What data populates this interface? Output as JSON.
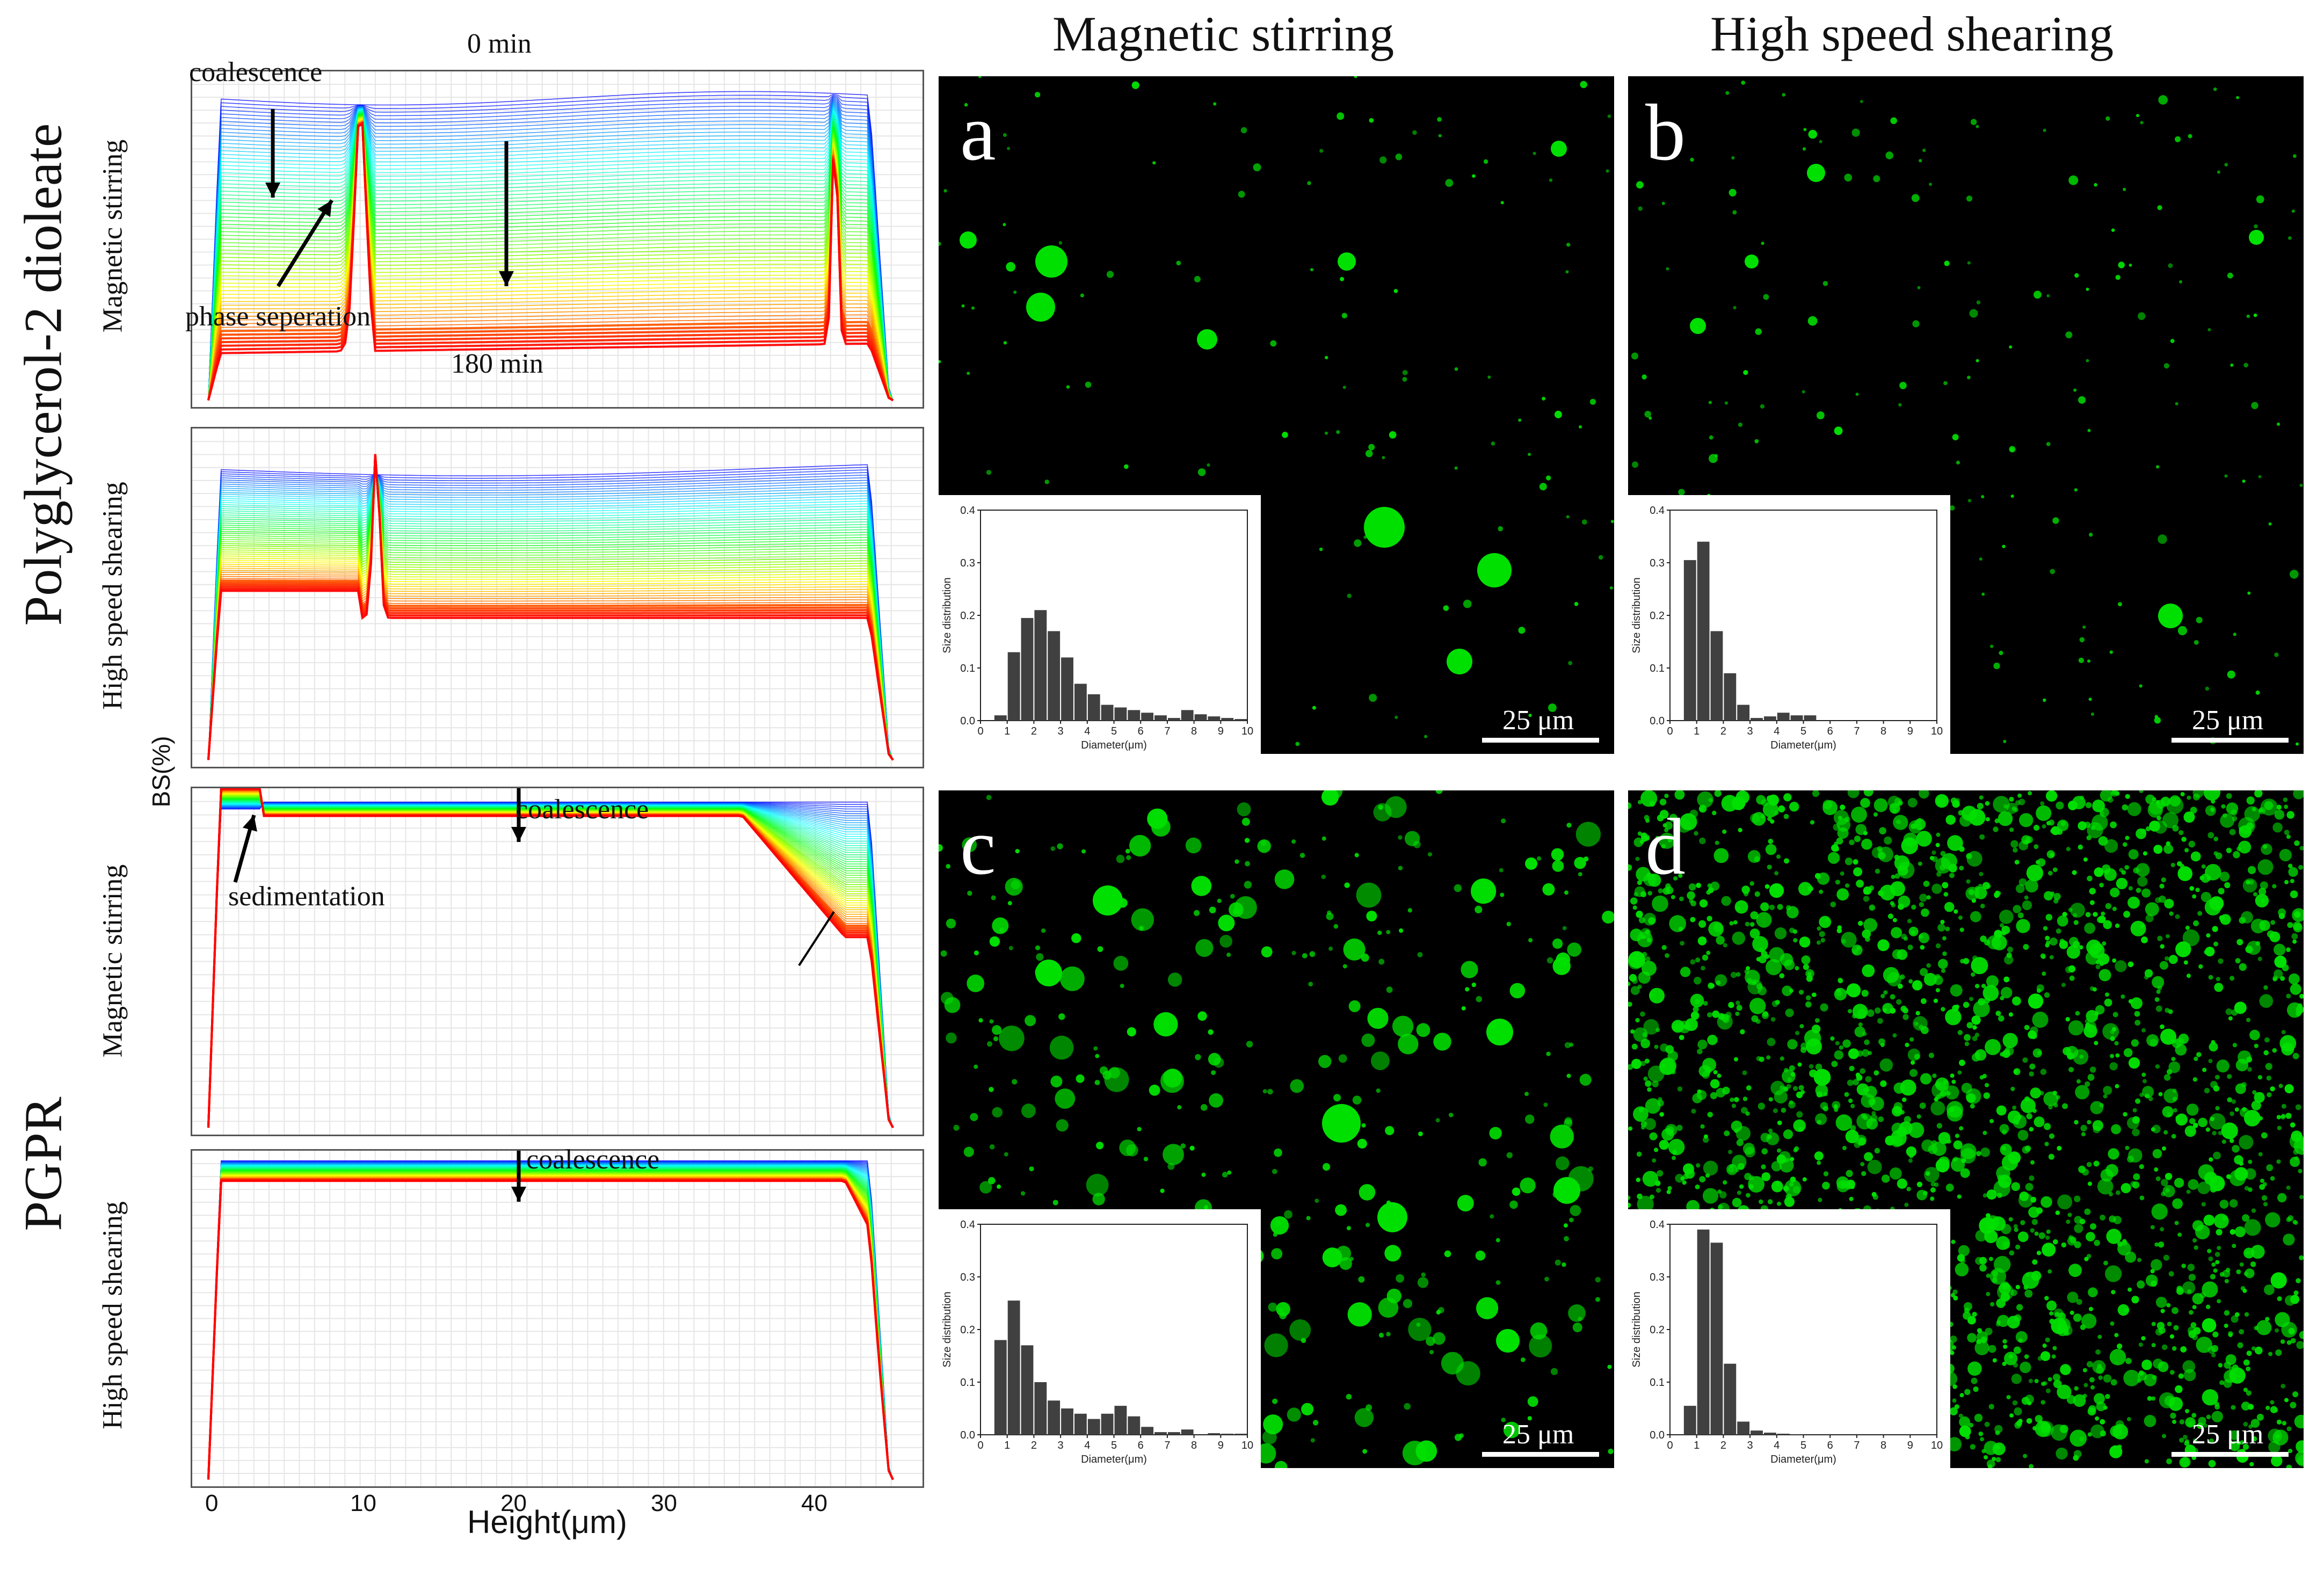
{
  "column_headers": [
    "Magnetic stirring",
    "High speed shearing"
  ],
  "row_labels": [
    "Polyglycerol-2 dioleate",
    "PGPR"
  ],
  "sub_labels": [
    "Magnetic stirring",
    "High speed shearing",
    "Magnetic stirring",
    "High speed shearing"
  ],
  "ylabel": "BS(%)",
  "xlabel": "Height(μm)",
  "annotations": {
    "p1_top": "0 min",
    "p1_bottom": "180 min",
    "p1_coalescence": "coalescence",
    "p1_phase": "phase seperation",
    "p3_coalescence": "coalescence",
    "p3_sedimentation": "sedimentation",
    "p4_coalescence": "coalescence"
  },
  "micrograph_letters": [
    "a",
    "b",
    "c",
    "d"
  ],
  "scale_bar_label": "25 μm",
  "colors": {
    "droplet": "#00e000",
    "background": "#000000",
    "bar": "#404040",
    "early_curve": "#1a3cff",
    "late_curve": "#ff1a00"
  },
  "chart_data": [
    {
      "type": "line",
      "panel": "Polyglycerol-2 dioleate / Magnetic stirring",
      "x_axis": "Height",
      "x_ticks": [
        "0",
        "10",
        "20",
        "30",
        "40"
      ],
      "xlim": [
        0,
        46
      ],
      "note": "BS profiles from 0 min to 180 min"
    },
    {
      "type": "line",
      "panel": "Polyglycerol-2 dioleate / High speed shearing",
      "xlim": [
        0,
        46
      ]
    },
    {
      "type": "line",
      "panel": "PGPR / Magnetic stirring",
      "xlim": [
        0,
        46
      ]
    },
    {
      "type": "line",
      "panel": "PGPR / High speed shearing",
      "xlim": [
        0,
        46
      ]
    },
    {
      "type": "bar",
      "panel": "a",
      "xlabel": "Diameter(μm)",
      "ylabel": "Size distribution",
      "x_ticks": [
        "0",
        "1",
        "2",
        "3",
        "4",
        "5",
        "6",
        "7",
        "8",
        "9",
        "10"
      ],
      "y_ticks": [
        "0.0",
        "0.1",
        "0.2",
        "0.3",
        "0.4"
      ],
      "xlim": [
        0,
        10
      ],
      "ylim": [
        0,
        0.4
      ],
      "bin_width": 0.5,
      "values": [
        0,
        0.01,
        0.13,
        0.195,
        0.21,
        0.17,
        0.12,
        0.07,
        0.05,
        0.03,
        0.025,
        0.02,
        0.015,
        0.01,
        0.005,
        0.02,
        0.012,
        0.008,
        0.005,
        0.003
      ]
    },
    {
      "type": "bar",
      "panel": "b",
      "xlabel": "Diameter(μm)",
      "ylabel": "Size distribution",
      "x_ticks": [
        "0",
        "1",
        "2",
        "3",
        "4",
        "5",
        "6",
        "7",
        "8",
        "9",
        "10"
      ],
      "y_ticks": [
        "0.0",
        "0.1",
        "0.2",
        "0.3",
        "0.4"
      ],
      "xlim": [
        0,
        10
      ],
      "ylim": [
        0,
        0.4
      ],
      "bin_width": 0.5,
      "values": [
        0,
        0.305,
        0.34,
        0.17,
        0.09,
        0.03,
        0.005,
        0.008,
        0.015,
        0.01,
        0.01
      ]
    },
    {
      "type": "bar",
      "panel": "c",
      "xlabel": "Diameter(μm)",
      "ylabel": "Size distribution",
      "x_ticks": [
        "0",
        "1",
        "2",
        "3",
        "4",
        "5",
        "6",
        "7",
        "8",
        "9",
        "10"
      ],
      "y_ticks": [
        "0.0",
        "0.1",
        "0.2",
        "0.3",
        "0.4"
      ],
      "xlim": [
        0,
        10
      ],
      "ylim": [
        0,
        0.4
      ],
      "bin_width": 0.5,
      "values": [
        0,
        0.18,
        0.255,
        0.17,
        0.1,
        0.065,
        0.05,
        0.04,
        0.03,
        0.04,
        0.055,
        0.035,
        0.015,
        0.005,
        0.005,
        0.01,
        0,
        0.003,
        0.002,
        0.002
      ]
    },
    {
      "type": "bar",
      "panel": "d",
      "xlabel": "Diameter(μm)",
      "ylabel": "Size distribution",
      "x_ticks": [
        "0",
        "1",
        "2",
        "3",
        "4",
        "5",
        "6",
        "7",
        "8",
        "9",
        "10"
      ],
      "y_ticks": [
        "0.0",
        "0.1",
        "0.2",
        "0.3",
        "0.4"
      ],
      "xlim": [
        0,
        10
      ],
      "ylim": [
        0,
        0.4
      ],
      "bin_width": 0.5,
      "values": [
        0,
        0.055,
        0.39,
        0.365,
        0.135,
        0.025,
        0.008,
        0.004,
        0.002,
        0.001
      ]
    }
  ]
}
